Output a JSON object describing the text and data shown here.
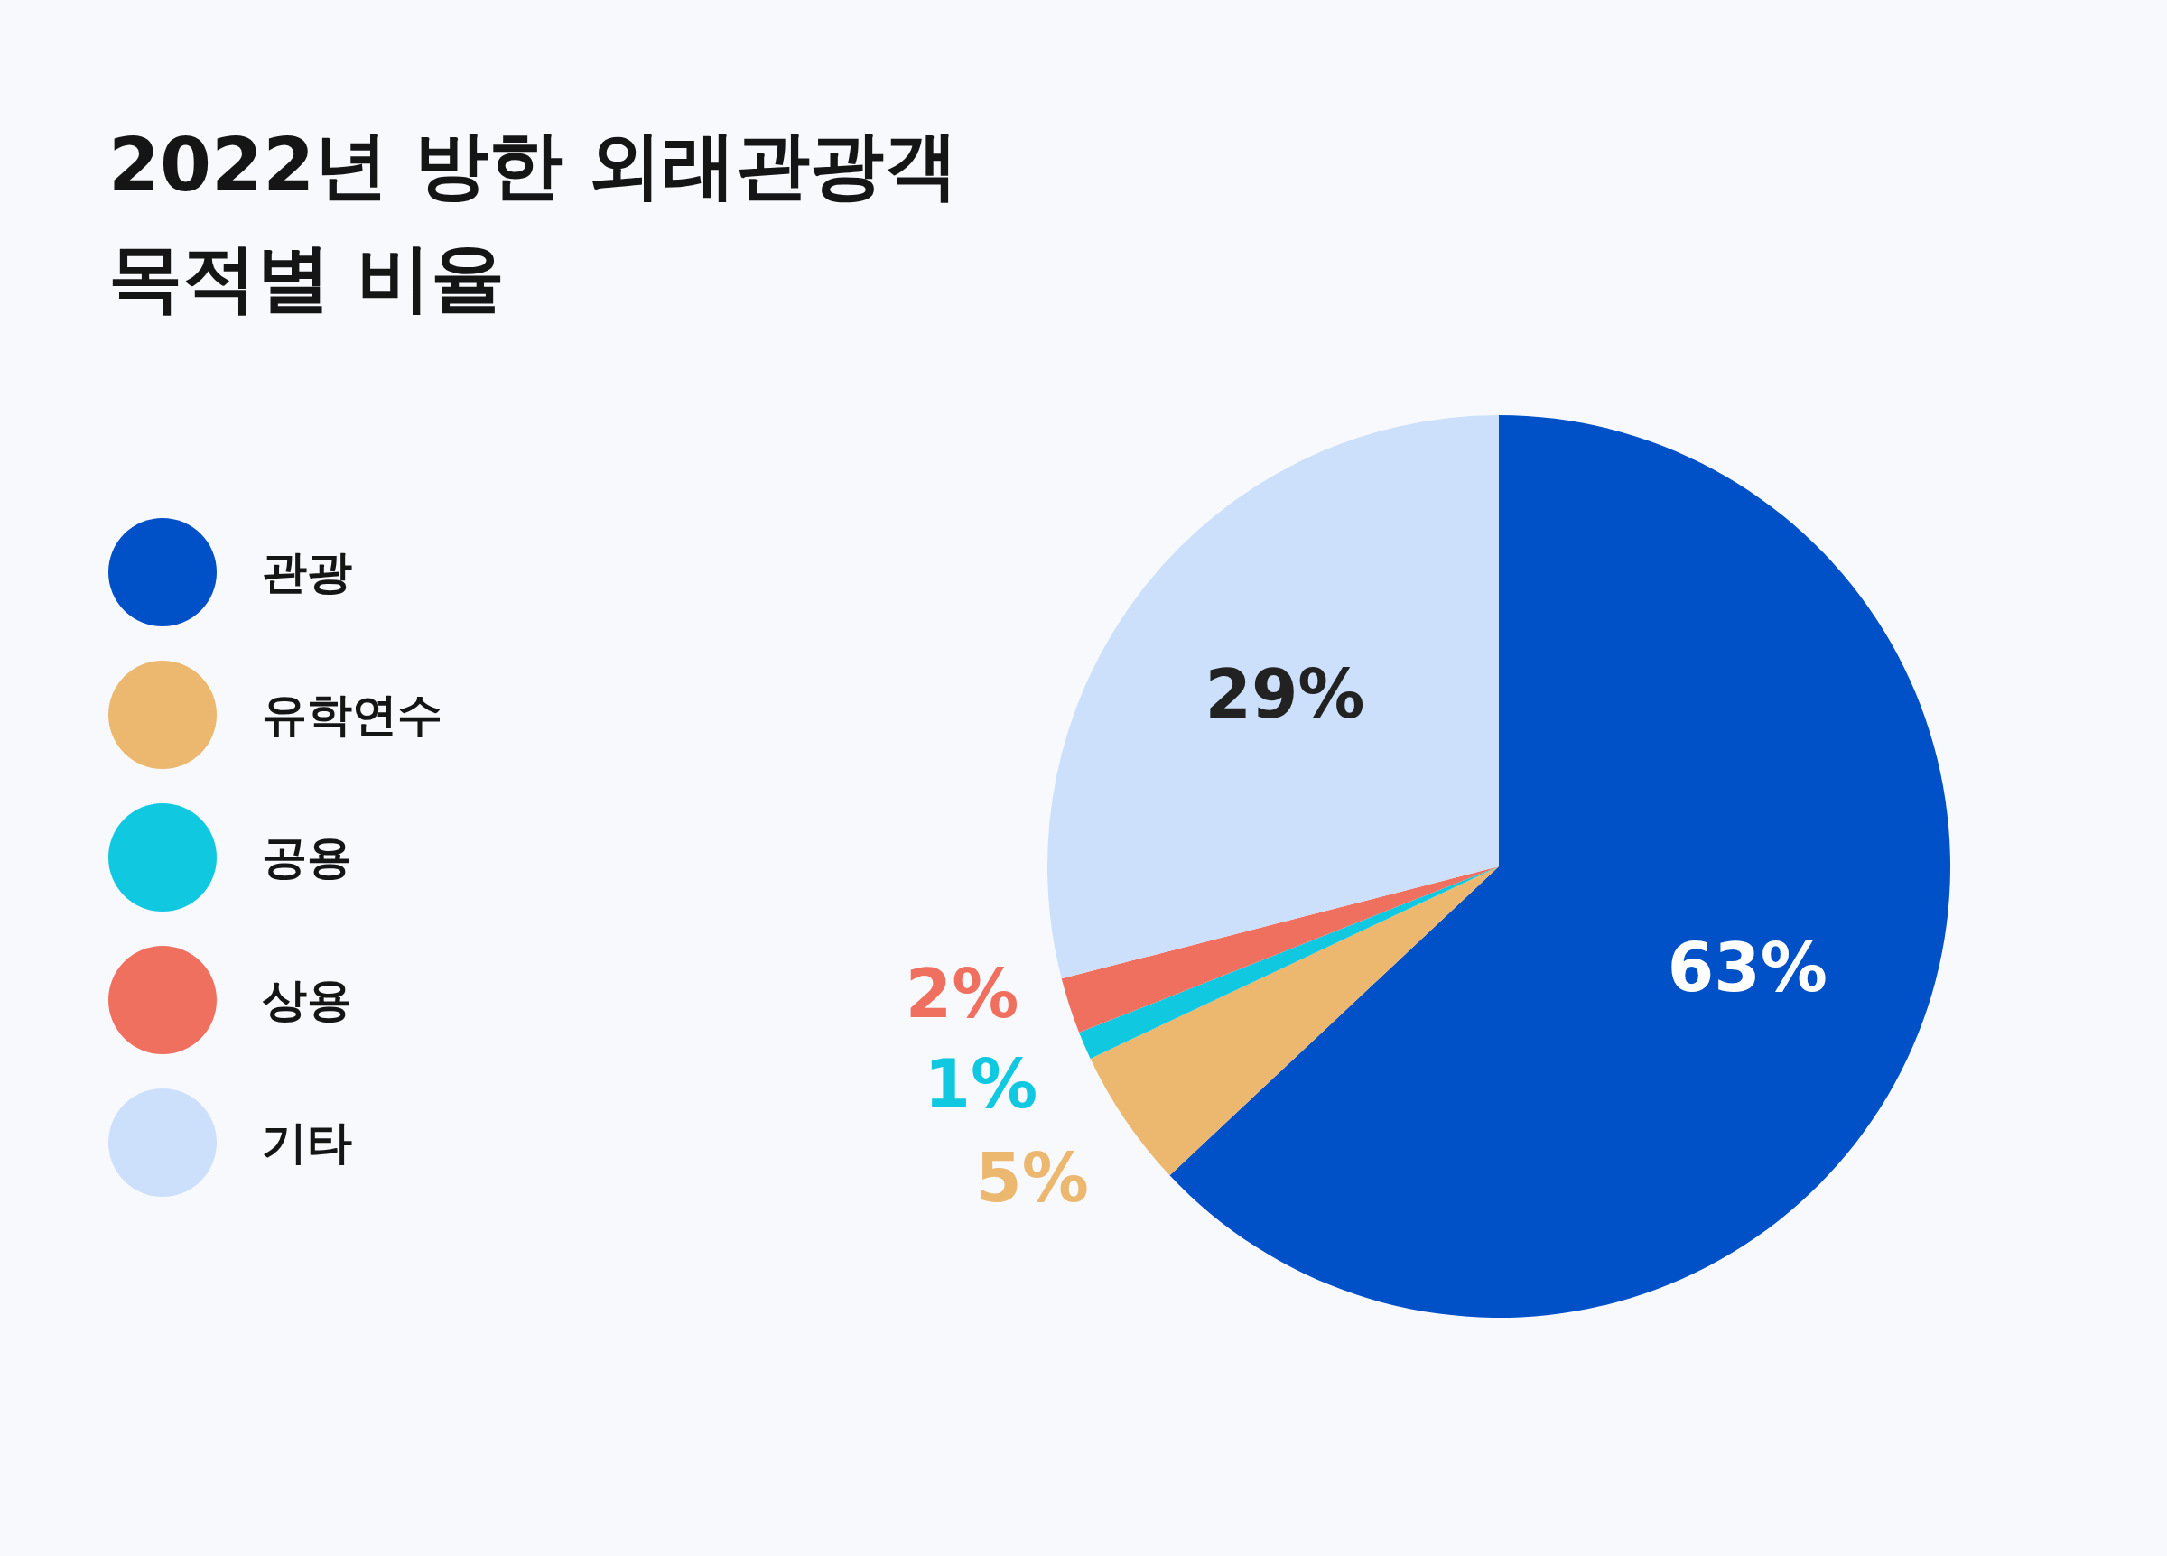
{
  "chart_data": {
    "type": "pie",
    "title": "2022년 방한 외래관광객\n목적별 비율",
    "categories": [
      "관광",
      "유학연수",
      "공용",
      "상용",
      "기타"
    ],
    "values": [
      63,
      5,
      1,
      2,
      29
    ],
    "value_labels": [
      "63%",
      "5%",
      "1%",
      "2%",
      "29%"
    ],
    "colors": [
      "#0050c8",
      "#ecb870",
      "#10c8e0",
      "#f07060",
      "#cce0fc"
    ],
    "legend": "left"
  }
}
